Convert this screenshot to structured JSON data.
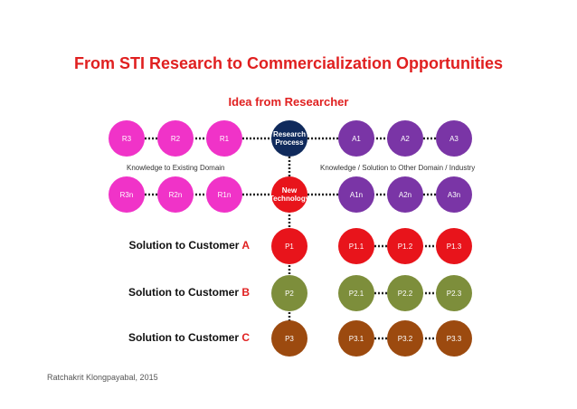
{
  "title": "From STI Research to Commercialization Opportunities",
  "subtitle": "Idea from Researcher",
  "captions": {
    "left": "Knowledge to Existing Domain",
    "right": "Knowledge / Solution to Other Domain / Industry"
  },
  "rows": {
    "top": {
      "left": [
        "R3",
        "R2",
        "R1"
      ],
      "center": "Research Process",
      "right": [
        "A1",
        "A2",
        "A3"
      ]
    },
    "second": {
      "left": [
        "R3n",
        "R2n",
        "R1n"
      ],
      "center": "New Technology",
      "right": [
        "A1n",
        "A2n",
        "A3n"
      ]
    }
  },
  "solutions": [
    {
      "prefix": "Solution to Customer ",
      "letter": "A",
      "center": "P1",
      "right": [
        "P1.1",
        "P1.2",
        "P1.3"
      ],
      "color": "#e8141b"
    },
    {
      "prefix": "Solution to Customer ",
      "letter": "B",
      "center": "P2",
      "right": [
        "P2.1",
        "P2.2",
        "P2.3"
      ],
      "color": "#7d8e3b"
    },
    {
      "prefix": "Solution to Customer ",
      "letter": "C",
      "center": "P3",
      "right": [
        "P3.1",
        "P3.2",
        "P3.3"
      ],
      "color": "#9c4a0f"
    }
  ],
  "colors": {
    "magenta": "#f033c8",
    "purple": "#7a35a6",
    "navy": "#102a5c",
    "red": "#e8141b",
    "accent": "#e02020"
  },
  "footer": "Ratchakrit Klongpayabal, 2015"
}
